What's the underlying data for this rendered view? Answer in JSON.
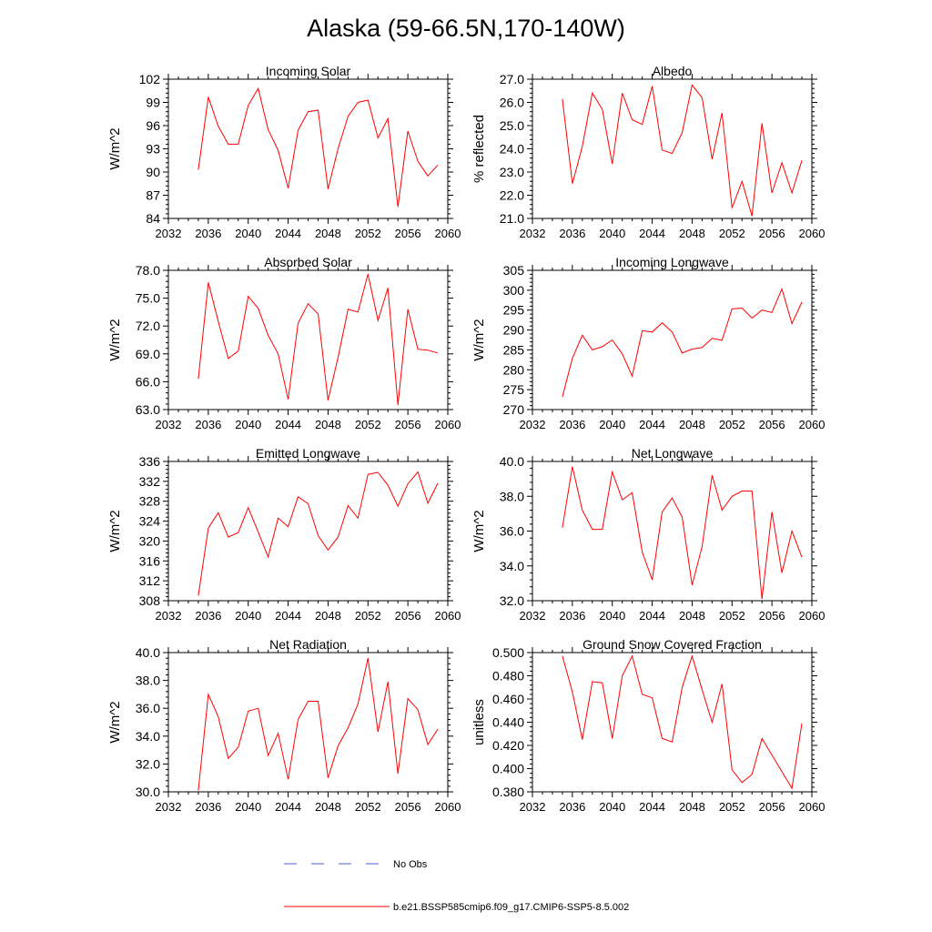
{
  "title": "Alaska (59-66.5N,170-140W)",
  "colors": {
    "series": "#ff0000",
    "obs": "#4a5fd0",
    "axis": "#000000"
  },
  "legend": {
    "entries": [
      {
        "label": "No Obs",
        "style": "dashed",
        "color": "#4a5fd0"
      },
      {
        "label": "b.e21.BSSP585cmip6.f09_g17.CMIP6-SSP5-8.5.002",
        "style": "solid",
        "color": "#ff0000"
      }
    ]
  },
  "chart_data": [
    {
      "type": "line",
      "title": "Incoming Solar",
      "ylabel": "W/m^2",
      "xlim": [
        2032,
        2060
      ],
      "ylim": [
        84,
        102
      ],
      "xticks": [
        2032,
        2036,
        2040,
        2044,
        2048,
        2052,
        2056,
        2060
      ],
      "yticks": [
        "84",
        "87",
        "90",
        "93",
        "96",
        "99",
        "102"
      ],
      "x": [
        2035,
        2036,
        2037,
        2038,
        2039,
        2040,
        2041,
        2042,
        2043,
        2044,
        2045,
        2046,
        2047,
        2048,
        2049,
        2050,
        2051,
        2052,
        2053,
        2054,
        2055,
        2056,
        2057,
        2058,
        2059
      ],
      "y": [
        90.3,
        99.7,
        95.9,
        93.6,
        93.6,
        98.6,
        100.8,
        95.5,
        92.8,
        87.9,
        95.4,
        97.8,
        98.0,
        87.8,
        93.0,
        97.2,
        99.0,
        99.3,
        94.4,
        96.9,
        85.5,
        95.3,
        91.4,
        89.5,
        90.9
      ]
    },
    {
      "type": "line",
      "title": "Albedo",
      "ylabel": "% reflected",
      "xlim": [
        2032,
        2060
      ],
      "ylim": [
        21.0,
        27.0
      ],
      "xticks": [
        2032,
        2036,
        2040,
        2044,
        2048,
        2052,
        2056,
        2060
      ],
      "yticks": [
        "21.0",
        "22.0",
        "23.0",
        "24.0",
        "25.0",
        "26.0",
        "27.0"
      ],
      "x": [
        2035,
        2036,
        2037,
        2038,
        2039,
        2040,
        2041,
        2042,
        2043,
        2044,
        2045,
        2046,
        2047,
        2048,
        2049,
        2050,
        2051,
        2052,
        2053,
        2054,
        2055,
        2056,
        2057,
        2058,
        2059
      ],
      "y": [
        26.15,
        22.5,
        24.1,
        26.4,
        25.7,
        23.35,
        26.4,
        25.25,
        25.05,
        26.7,
        23.95,
        23.8,
        24.7,
        26.75,
        26.2,
        23.55,
        25.55,
        21.45,
        22.6,
        21.1,
        25.1,
        22.1,
        23.4,
        22.1,
        23.5
      ]
    },
    {
      "type": "line",
      "title": "Absorbed Solar",
      "ylabel": "W/m^2",
      "xlim": [
        2032,
        2060
      ],
      "ylim": [
        63.0,
        78.0
      ],
      "xticks": [
        2032,
        2036,
        2040,
        2044,
        2048,
        2052,
        2056,
        2060
      ],
      "yticks": [
        "63.0",
        "66.0",
        "69.0",
        "72.0",
        "75.0",
        "78.0"
      ],
      "x": [
        2035,
        2036,
        2037,
        2038,
        2039,
        2040,
        2041,
        2042,
        2043,
        2044,
        2045,
        2046,
        2047,
        2048,
        2049,
        2050,
        2051,
        2052,
        2053,
        2054,
        2055,
        2056,
        2057,
        2058,
        2059
      ],
      "y": [
        66.3,
        76.7,
        72.5,
        68.5,
        69.3,
        75.2,
        73.9,
        71.0,
        69.0,
        64.1,
        72.3,
        74.4,
        73.3,
        64.0,
        68.6,
        73.8,
        73.5,
        77.6,
        72.6,
        76.1,
        63.5,
        73.8,
        69.5,
        69.4,
        69.1
      ]
    },
    {
      "type": "line",
      "title": "Incoming Longwave",
      "ylabel": "W/m^2",
      "xlim": [
        2032,
        2060
      ],
      "ylim": [
        270,
        305
      ],
      "xticks": [
        2032,
        2036,
        2040,
        2044,
        2048,
        2052,
        2056,
        2060
      ],
      "yticks": [
        "270",
        "275",
        "280",
        "285",
        "290",
        "295",
        "300",
        "305"
      ],
      "x": [
        2035,
        2036,
        2037,
        2038,
        2039,
        2040,
        2041,
        2042,
        2043,
        2044,
        2045,
        2046,
        2047,
        2048,
        2049,
        2050,
        2051,
        2052,
        2053,
        2054,
        2055,
        2056,
        2057,
        2058,
        2059
      ],
      "y": [
        273.2,
        282.9,
        288.7,
        285.0,
        285.8,
        287.5,
        284.0,
        278.4,
        289.8,
        289.5,
        291.8,
        289.5,
        284.2,
        285.2,
        285.6,
        287.9,
        287.4,
        295.3,
        295.5,
        293.0,
        295.0,
        294.4,
        300.3,
        291.6,
        297.0
      ]
    },
    {
      "type": "line",
      "title": "Emitted Longwave",
      "ylabel": "W/m^2",
      "xlim": [
        2032,
        2060
      ],
      "ylim": [
        308,
        336
      ],
      "xticks": [
        2032,
        2036,
        2040,
        2044,
        2048,
        2052,
        2056,
        2060
      ],
      "yticks": [
        "308",
        "312",
        "316",
        "320",
        "324",
        "328",
        "332",
        "336"
      ],
      "x": [
        2035,
        2036,
        2037,
        2038,
        2039,
        2040,
        2041,
        2042,
        2043,
        2044,
        2045,
        2046,
        2047,
        2048,
        2049,
        2050,
        2051,
        2052,
        2053,
        2054,
        2055,
        2056,
        2057,
        2058,
        2059
      ],
      "y": [
        309.0,
        322.6,
        325.7,
        320.8,
        321.7,
        326.7,
        321.8,
        316.8,
        324.6,
        322.9,
        328.9,
        327.5,
        321.1,
        318.2,
        320.8,
        327.1,
        324.6,
        333.4,
        333.8,
        331.2,
        327.0,
        331.5,
        333.9,
        327.6,
        331.6
      ]
    },
    {
      "type": "line",
      "title": "Net Longwave",
      "ylabel": "W/m^2",
      "xlim": [
        2032,
        2060
      ],
      "ylim": [
        32.0,
        40.0
      ],
      "xticks": [
        2032,
        2036,
        2040,
        2044,
        2048,
        2052,
        2056,
        2060
      ],
      "yticks": [
        "32.0",
        "34.0",
        "36.0",
        "38.0",
        "40.0"
      ],
      "x": [
        2035,
        2036,
        2037,
        2038,
        2039,
        2040,
        2041,
        2042,
        2043,
        2044,
        2045,
        2046,
        2047,
        2048,
        2049,
        2050,
        2051,
        2052,
        2053,
        2054,
        2055,
        2056,
        2057,
        2058,
        2059
      ],
      "y": [
        36.2,
        39.7,
        37.2,
        36.1,
        36.1,
        39.4,
        37.8,
        38.2,
        34.8,
        33.2,
        37.1,
        37.9,
        36.8,
        32.9,
        35.1,
        39.2,
        37.2,
        38.0,
        38.3,
        38.3,
        32.1,
        37.1,
        33.6,
        36.0,
        34.5
      ]
    },
    {
      "type": "line",
      "title": "Net Radiation",
      "ylabel": "W/m^2",
      "xlim": [
        2032,
        2060
      ],
      "ylim": [
        30.0,
        40.0
      ],
      "xticks": [
        2032,
        2036,
        2040,
        2044,
        2048,
        2052,
        2056,
        2060
      ],
      "yticks": [
        "30.0",
        "32.0",
        "34.0",
        "36.0",
        "38.0",
        "40.0"
      ],
      "x": [
        2035,
        2036,
        2037,
        2038,
        2039,
        2040,
        2041,
        2042,
        2043,
        2044,
        2045,
        2046,
        2047,
        2048,
        2049,
        2050,
        2051,
        2052,
        2053,
        2054,
        2055,
        2056,
        2057,
        2058,
        2059
      ],
      "y": [
        30.1,
        37.0,
        35.4,
        32.4,
        33.2,
        35.8,
        36.0,
        32.6,
        34.2,
        30.9,
        35.2,
        36.5,
        36.5,
        31.0,
        33.3,
        34.6,
        36.3,
        39.6,
        34.3,
        37.9,
        31.3,
        36.7,
        35.9,
        33.4,
        34.5
      ]
    },
    {
      "type": "line",
      "title": "Ground Snow Covered Fraction",
      "ylabel": "unitless",
      "xlim": [
        2032,
        2060
      ],
      "ylim": [
        0.38,
        0.5
      ],
      "xticks": [
        2032,
        2036,
        2040,
        2044,
        2048,
        2052,
        2056,
        2060
      ],
      "yticks": [
        "0.380",
        "0.400",
        "0.420",
        "0.440",
        "0.460",
        "0.480",
        "0.500"
      ],
      "x": [
        2035,
        2036,
        2037,
        2038,
        2039,
        2040,
        2041,
        2042,
        2043,
        2044,
        2045,
        2046,
        2047,
        2048,
        2049,
        2050,
        2051,
        2052,
        2053,
        2054,
        2055,
        2058,
        2059
      ],
      "y": [
        0.497,
        0.466,
        0.425,
        0.475,
        0.474,
        0.426,
        0.48,
        0.497,
        0.464,
        0.461,
        0.426,
        0.423,
        0.47,
        0.497,
        0.468,
        0.44,
        0.473,
        0.399,
        0.388,
        0.395,
        0.426,
        0.383,
        0.439
      ]
    }
  ]
}
